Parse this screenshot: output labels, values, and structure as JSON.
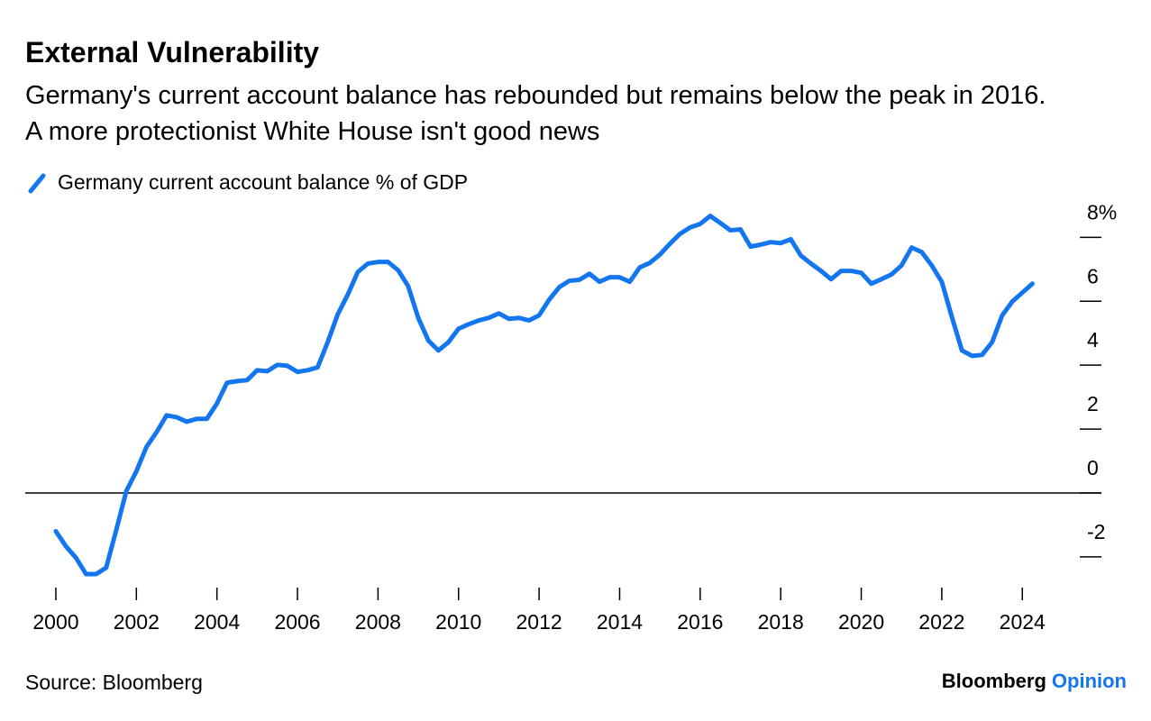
{
  "chart_data": {
    "type": "line",
    "title": "External Vulnerability",
    "subtitle": "Germany's current account balance has rebounded but remains below the peak in 2016. A more protectionist White House isn't good news",
    "source": "Source: Bloomberg",
    "brand": "Bloomberg",
    "brand_suffix": "Opinion",
    "x": [
      2000,
      2000.25,
      2000.5,
      2000.75,
      2001,
      2001.25,
      2001.5,
      2001.75,
      2002,
      2002.25,
      2002.5,
      2002.75,
      2003,
      2003.25,
      2003.5,
      2003.75,
      2004,
      2004.25,
      2004.5,
      2004.75,
      2005,
      2005.25,
      2005.5,
      2005.75,
      2006,
      2006.25,
      2006.5,
      2006.75,
      2007,
      2007.25,
      2007.5,
      2007.75,
      2008,
      2008.25,
      2008.5,
      2008.75,
      2009,
      2009.25,
      2009.5,
      2009.75,
      2010,
      2010.25,
      2010.5,
      2010.75,
      2011,
      2011.25,
      2011.5,
      2011.75,
      2012,
      2012.25,
      2012.5,
      2012.75,
      2013,
      2013.25,
      2013.5,
      2013.75,
      2014,
      2014.25,
      2014.5,
      2014.75,
      2015,
      2015.25,
      2015.5,
      2015.75,
      2016,
      2016.25,
      2016.5,
      2016.75,
      2017,
      2017.25,
      2017.5,
      2017.75,
      2018,
      2018.25,
      2018.5,
      2018.75,
      2019,
      2019.25,
      2019.5,
      2019.75,
      2020,
      2020.25,
      2020.5,
      2020.75,
      2021,
      2021.25,
      2021.5,
      2021.75,
      2022,
      2022.25,
      2022.5,
      2022.75,
      2023,
      2023.25,
      2023.5,
      2023.75,
      2024,
      2024.25
    ],
    "series": [
      {
        "name": "Germany current account balance % of GDP",
        "color": "#1476ee",
        "values": [
          -1.2,
          -1.67,
          -2.03,
          -2.54,
          -2.54,
          -2.34,
          -1.16,
          0.06,
          0.68,
          1.44,
          1.9,
          2.43,
          2.37,
          2.23,
          2.32,
          2.32,
          2.8,
          3.45,
          3.5,
          3.53,
          3.84,
          3.81,
          4.01,
          3.98,
          3.79,
          3.84,
          3.93,
          4.72,
          5.59,
          6.21,
          6.92,
          7.18,
          7.23,
          7.23,
          6.97,
          6.47,
          5.48,
          4.77,
          4.46,
          4.72,
          5.14,
          5.28,
          5.4,
          5.48,
          5.62,
          5.45,
          5.48,
          5.4,
          5.56,
          6.05,
          6.44,
          6.64,
          6.67,
          6.86,
          6.61,
          6.75,
          6.75,
          6.61,
          7.06,
          7.2,
          7.46,
          7.8,
          8.11,
          8.31,
          8.42,
          8.67,
          8.45,
          8.22,
          8.25,
          7.71,
          7.77,
          7.85,
          7.82,
          7.94,
          7.43,
          7.18,
          6.95,
          6.69,
          6.95,
          6.95,
          6.89,
          6.55,
          6.69,
          6.84,
          7.12,
          7.68,
          7.54,
          7.12,
          6.61,
          5.51,
          4.46,
          4.29,
          4.32,
          4.72,
          5.56,
          5.99,
          6.27,
          6.55
        ]
      }
    ],
    "xlim": [
      1999.24,
      2024.8
    ],
    "xticks": [
      2000,
      2002,
      2004,
      2006,
      2008,
      2010,
      2012,
      2014,
      2016,
      2018,
      2020,
      2022,
      2024
    ],
    "ylim": [
      -2.85,
      8.8
    ],
    "yticks": [
      -2,
      0,
      2,
      4,
      6,
      {
        "value": 8,
        "label": "8%"
      }
    ],
    "zero_line": true,
    "legend": "top-left"
  }
}
